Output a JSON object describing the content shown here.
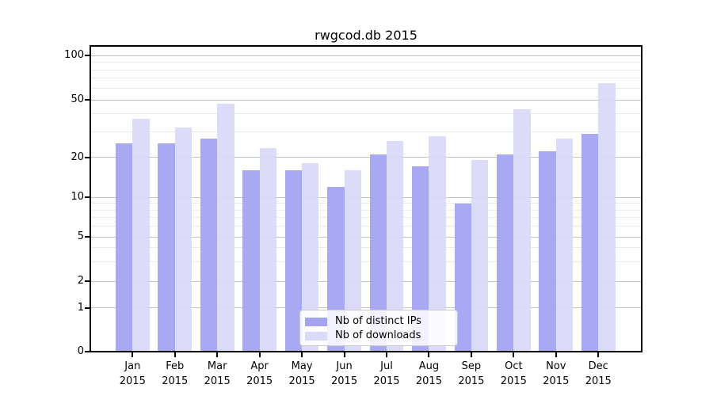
{
  "title": "rwgcod.db 2015",
  "chart_data": {
    "type": "bar",
    "title": "rwgcod.db 2015",
    "categories": [
      "Jan",
      "Feb",
      "Mar",
      "Apr",
      "May",
      "Jun",
      "Jul",
      "Aug",
      "Sep",
      "Oct",
      "Nov",
      "Dec"
    ],
    "category_year": "2015",
    "series": [
      {
        "name": "Nb of distinct IPs",
        "color": "rgba(163,163,242,0.95)",
        "swatch_color": "#a3a3f2",
        "values": [
          25,
          25,
          27,
          16,
          16,
          12,
          21,
          17,
          9,
          21,
          22,
          29
        ]
      },
      {
        "name": "Nb of downloads",
        "color": "rgba(217,217,250,0.92)",
        "swatch_color": "#d9d9f8",
        "values": [
          37,
          32,
          47,
          23,
          18,
          16,
          26,
          28,
          19,
          43,
          27,
          65
        ]
      }
    ],
    "y_axis": {
      "scale": "log-like (log above 1, linear 0-1)",
      "major_ticks": [
        100,
        50,
        20,
        10,
        5,
        2,
        1,
        0
      ],
      "minor_gridlines": [
        90,
        80,
        70,
        60,
        40,
        30,
        9,
        8,
        7,
        6,
        4,
        3
      ],
      "ylim": [
        0,
        116
      ]
    },
    "xlabel": "",
    "ylabel": "",
    "grid": true,
    "legend_position": "lower center"
  },
  "colors": {
    "major_grid": "#c3c3c3",
    "minor_grid": "#eaeaea",
    "spine": "#000000",
    "legend_border": "#c9c9c9"
  }
}
